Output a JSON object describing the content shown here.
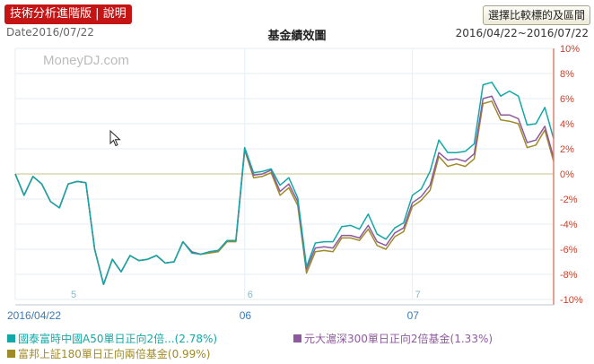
{
  "toolbar": {
    "tech_label": "技術分析進階版",
    "separator": "|",
    "help_label": "說明",
    "range_button": "選擇比較標的及區間"
  },
  "header": {
    "date_label": "Date2016/07/22",
    "title": "基金績效圖",
    "range": "2016/04/22~2016/07/22"
  },
  "watermark": "MoneyDJ.com",
  "colors": {
    "series1": "#13a7a7",
    "series2": "#8e5a9e",
    "series3": "#a08a28",
    "zero_line": "#c9c08a",
    "axis_right": "#e08070",
    "tick_text": "#c8402a",
    "grid": "#e6eef2"
  },
  "legend": [
    {
      "label": "國泰富時中國A50單日正向2倍...",
      "value": "(2.78%)"
    },
    {
      "label": "元大滬深300單日正向2倍基金",
      "value": "(1.33%)"
    },
    {
      "label": "富邦上証180單日正向兩倍基金",
      "value": "(0.99%)"
    }
  ],
  "chart_data": {
    "type": "line",
    "x_labels": [
      {
        "text": "2016/04/22",
        "i": 0
      },
      {
        "text": "06",
        "i": 26
      },
      {
        "text": "07",
        "i": 45
      }
    ],
    "inner_labels": [
      {
        "text": "5",
        "i": 6
      },
      {
        "text": "6",
        "i": 26
      },
      {
        "text": "7",
        "i": 45
      }
    ],
    "y_ticks": [
      "10%",
      "8%",
      "6%",
      "4%",
      "2%",
      "0%",
      "-2%",
      "-4%",
      "-6%",
      "-8%",
      "-10%"
    ],
    "ylim": [
      -10,
      10
    ],
    "grid": true,
    "series": [
      {
        "name": "國泰富時中國A50單日正向2倍",
        "values": [
          0,
          -1.7,
          -0.2,
          -0.8,
          -2.2,
          -2.7,
          -0.8,
          -0.6,
          -0.7,
          -6.0,
          -8.8,
          -6.8,
          -7.8,
          -6.5,
          -6.9,
          -6.8,
          -6.5,
          -7.1,
          -7.0,
          -5.4,
          -6.3,
          -6.4,
          -6.2,
          -6.1,
          -5.3,
          -5.3,
          2.1,
          0.1,
          0.2,
          0.4,
          -0.9,
          -0.3,
          -1.9,
          -7.4,
          -5.5,
          -5.4,
          -5.4,
          -4.2,
          -4.1,
          -4.4,
          -3.2,
          -4.8,
          -5.2,
          -4.3,
          -3.9,
          -1.7,
          -1.2,
          0.2,
          2.7,
          1.7,
          1.7,
          1.8,
          2.4,
          7.1,
          7.3,
          6.2,
          6.6,
          6.2,
          3.9,
          4.0,
          5.3,
          2.8
        ]
      },
      {
        "name": "元大滬深300單日正向2倍",
        "values": [
          0,
          -1.7,
          -0.2,
          -0.8,
          -2.2,
          -2.7,
          -0.8,
          -0.6,
          -0.7,
          -6.0,
          -8.8,
          -6.8,
          -7.8,
          -6.5,
          -6.9,
          -6.8,
          -6.5,
          -7.1,
          -7.0,
          -5.4,
          -6.2,
          -6.4,
          -6.2,
          -6.1,
          -5.3,
          -5.3,
          2.0,
          -0.1,
          0.0,
          0.3,
          -1.4,
          -0.8,
          -2.2,
          -7.6,
          -5.9,
          -5.8,
          -5.9,
          -4.9,
          -4.9,
          -5.1,
          -4.1,
          -5.4,
          -5.7,
          -4.7,
          -4.3,
          -2.3,
          -1.8,
          -0.9,
          1.7,
          1.1,
          1.2,
          1.0,
          1.6,
          6.0,
          6.2,
          4.7,
          4.7,
          4.4,
          2.5,
          2.7,
          3.8,
          1.3
        ]
      },
      {
        "name": "富邦上証180單日正向兩倍",
        "values": [
          0,
          -1.7,
          -0.2,
          -0.8,
          -2.2,
          -2.7,
          -0.8,
          -0.6,
          -0.7,
          -6.0,
          -8.8,
          -6.8,
          -7.8,
          -6.5,
          -6.9,
          -6.8,
          -6.5,
          -7.1,
          -7.0,
          -5.4,
          -6.2,
          -6.4,
          -6.3,
          -6.2,
          -5.4,
          -5.4,
          1.9,
          -0.3,
          -0.2,
          0.1,
          -1.7,
          -1.1,
          -2.5,
          -7.9,
          -6.2,
          -6.1,
          -6.2,
          -5.1,
          -5.1,
          -5.3,
          -4.4,
          -5.7,
          -6.0,
          -5.0,
          -4.6,
          -2.6,
          -2.1,
          -1.3,
          1.4,
          0.6,
          0.8,
          0.6,
          1.2,
          5.6,
          5.8,
          4.3,
          4.2,
          4.0,
          2.1,
          2.3,
          3.5,
          1.0
        ]
      }
    ]
  }
}
